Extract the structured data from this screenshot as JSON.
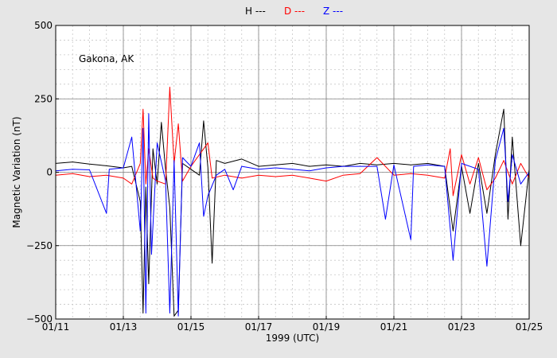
{
  "chart_data": {
    "type": "line",
    "title": "",
    "xlabel": "1999 (UTC)",
    "ylabel": "Magnetic Variation (nT)",
    "annotation": "Gakona, AK",
    "x_ticks": [
      "01/11",
      "01/13",
      "01/15",
      "01/17",
      "01/19",
      "01/21",
      "01/23",
      "01/25"
    ],
    "y_ticks": [
      "−500",
      "−250",
      "0",
      "250",
      "500"
    ],
    "xlim": [
      "1999-01-11",
      "1999-01-25"
    ],
    "ylim": [
      -500,
      500
    ],
    "grid": "major solid, minor dotted",
    "legend_placement": "top-center",
    "series": [
      {
        "name": "H ---",
        "color": "#000000",
        "points": [
          [
            "1999-01-11T00:00",
            30
          ],
          [
            "1999-01-11T12:00",
            35
          ],
          [
            "1999-01-12T00:00",
            28
          ],
          [
            "1999-01-12T12:00",
            22
          ],
          [
            "1999-01-13T00:00",
            15
          ],
          [
            "1999-01-13T06:00",
            20
          ],
          [
            "1999-01-13T12:00",
            -100
          ],
          [
            "1999-01-13T14:00",
            -480
          ],
          [
            "1999-01-13T16:00",
            -50
          ],
          [
            "1999-01-13T18:00",
            -380
          ],
          [
            "1999-01-13T21:00",
            80
          ],
          [
            "1999-01-14T00:00",
            -40
          ],
          [
            "1999-01-14T03:00",
            170
          ],
          [
            "1999-01-14T06:00",
            10
          ],
          [
            "1999-01-14T09:00",
            -120
          ],
          [
            "1999-01-14T12:00",
            -490
          ],
          [
            "1999-01-14T15:00",
            -470
          ],
          [
            "1999-01-14T18:00",
            30
          ],
          [
            "1999-01-15T00:00",
            10
          ],
          [
            "1999-01-15T06:00",
            -10
          ],
          [
            "1999-01-15T09:00",
            175
          ],
          [
            "1999-01-15T12:00",
            15
          ],
          [
            "1999-01-15T15:00",
            -310
          ],
          [
            "1999-01-15T18:00",
            40
          ],
          [
            "1999-01-16T00:00",
            30
          ],
          [
            "1999-01-16T12:00",
            45
          ],
          [
            "1999-01-17T00:00",
            20
          ],
          [
            "1999-01-17T12:00",
            25
          ],
          [
            "1999-01-18T00:00",
            30
          ],
          [
            "1999-01-18T12:00",
            20
          ],
          [
            "1999-01-19T00:00",
            25
          ],
          [
            "1999-01-19T12:00",
            20
          ],
          [
            "1999-01-20T00:00",
            30
          ],
          [
            "1999-01-20T12:00",
            25
          ],
          [
            "1999-01-21T00:00",
            30
          ],
          [
            "1999-01-21T12:00",
            25
          ],
          [
            "1999-01-22T00:00",
            30
          ],
          [
            "1999-01-22T12:00",
            20
          ],
          [
            "1999-01-22T18:00",
            -200
          ],
          [
            "1999-01-23T00:00",
            20
          ],
          [
            "1999-01-23T06:00",
            -140
          ],
          [
            "1999-01-23T12:00",
            30
          ],
          [
            "1999-01-23T18:00",
            -140
          ],
          [
            "1999-01-24T00:00",
            60
          ],
          [
            "1999-01-24T06:00",
            215
          ],
          [
            "1999-01-24T09:00",
            -160
          ],
          [
            "1999-01-24T12:00",
            120
          ],
          [
            "1999-01-24T18:00",
            -250
          ],
          [
            "1999-01-25T00:00",
            10
          ]
        ]
      },
      {
        "name": "D ---",
        "color": "#ff0000",
        "points": [
          [
            "1999-01-11T00:00",
            -10
          ],
          [
            "1999-01-11T12:00",
            -5
          ],
          [
            "1999-01-12T00:00",
            -15
          ],
          [
            "1999-01-12T12:00",
            -10
          ],
          [
            "1999-01-13T00:00",
            -20
          ],
          [
            "1999-01-13T06:00",
            -40
          ],
          [
            "1999-01-13T12:00",
            30
          ],
          [
            "1999-01-13T14:00",
            215
          ],
          [
            "1999-01-13T16:00",
            -40
          ],
          [
            "1999-01-13T18:00",
            80
          ],
          [
            "1999-01-13T21:00",
            -20
          ],
          [
            "1999-01-14T00:00",
            -30
          ],
          [
            "1999-01-14T06:00",
            -40
          ],
          [
            "1999-01-14T09:00",
            290
          ],
          [
            "1999-01-14T12:00",
            30
          ],
          [
            "1999-01-14T15:00",
            165
          ],
          [
            "1999-01-14T18:00",
            -30
          ],
          [
            "1999-01-15T00:00",
            20
          ],
          [
            "1999-01-15T12:00",
            100
          ],
          [
            "1999-01-15T15:00",
            -20
          ],
          [
            "1999-01-16T00:00",
            -10
          ],
          [
            "1999-01-16T12:00",
            -20
          ],
          [
            "1999-01-17T00:00",
            -10
          ],
          [
            "1999-01-17T12:00",
            -15
          ],
          [
            "1999-01-18T00:00",
            -10
          ],
          [
            "1999-01-18T12:00",
            -20
          ],
          [
            "1999-01-19T00:00",
            -30
          ],
          [
            "1999-01-19T12:00",
            -10
          ],
          [
            "1999-01-20T00:00",
            -5
          ],
          [
            "1999-01-20T12:00",
            50
          ],
          [
            "1999-01-21T00:00",
            -10
          ],
          [
            "1999-01-21T12:00",
            -5
          ],
          [
            "1999-01-22T00:00",
            -10
          ],
          [
            "1999-01-22T12:00",
            -20
          ],
          [
            "1999-01-22T16:00",
            80
          ],
          [
            "1999-01-22T18:00",
            -80
          ],
          [
            "1999-01-23T00:00",
            60
          ],
          [
            "1999-01-23T06:00",
            -40
          ],
          [
            "1999-01-23T12:00",
            50
          ],
          [
            "1999-01-23T18:00",
            -60
          ],
          [
            "1999-01-24T00:00",
            -20
          ],
          [
            "1999-01-24T06:00",
            40
          ],
          [
            "1999-01-24T12:00",
            -40
          ],
          [
            "1999-01-24T18:00",
            30
          ],
          [
            "1999-01-25T00:00",
            -20
          ]
        ]
      },
      {
        "name": "Z ---",
        "color": "#0000ff",
        "points": [
          [
            "1999-01-11T00:00",
            5
          ],
          [
            "1999-01-11T12:00",
            10
          ],
          [
            "1999-01-12T00:00",
            8
          ],
          [
            "1999-01-12T12:00",
            -140
          ],
          [
            "1999-01-12T14:00",
            10
          ],
          [
            "1999-01-13T00:00",
            15
          ],
          [
            "1999-01-13T06:00",
            120
          ],
          [
            "1999-01-13T12:00",
            -200
          ],
          [
            "1999-01-13T14:00",
            150
          ],
          [
            "1999-01-13T16:00",
            -480
          ],
          [
            "1999-01-13T18:00",
            200
          ],
          [
            "1999-01-13T20:00",
            -280
          ],
          [
            "1999-01-14T00:00",
            100
          ],
          [
            "1999-01-14T06:00",
            -30
          ],
          [
            "1999-01-14T09:00",
            -480
          ],
          [
            "1999-01-14T12:00",
            40
          ],
          [
            "1999-01-14T15:00",
            -490
          ],
          [
            "1999-01-14T18:00",
            50
          ],
          [
            "1999-01-15T00:00",
            20
          ],
          [
            "1999-01-15T06:00",
            100
          ],
          [
            "1999-01-15T09:00",
            -150
          ],
          [
            "1999-01-15T12:00",
            -80
          ],
          [
            "1999-01-15T18:00",
            -10
          ],
          [
            "1999-01-16T00:00",
            10
          ],
          [
            "1999-01-16T06:00",
            -60
          ],
          [
            "1999-01-16T12:00",
            20
          ],
          [
            "1999-01-17T00:00",
            10
          ],
          [
            "1999-01-17T12:00",
            15
          ],
          [
            "1999-01-18T00:00",
            10
          ],
          [
            "1999-01-18T12:00",
            5
          ],
          [
            "1999-01-19T00:00",
            15
          ],
          [
            "1999-01-19T12:00",
            20
          ],
          [
            "1999-01-20T00:00",
            20
          ],
          [
            "1999-01-20T12:00",
            20
          ],
          [
            "1999-01-20T18:00",
            -160
          ],
          [
            "1999-01-21T00:00",
            25
          ],
          [
            "1999-01-21T12:00",
            -230
          ],
          [
            "1999-01-21T14:00",
            20
          ],
          [
            "1999-01-22T00:00",
            25
          ],
          [
            "1999-01-22T12:00",
            20
          ],
          [
            "1999-01-22T18:00",
            -300
          ],
          [
            "1999-01-23T00:00",
            30
          ],
          [
            "1999-01-23T12:00",
            10
          ],
          [
            "1999-01-23T18:00",
            -320
          ],
          [
            "1999-01-24T00:00",
            40
          ],
          [
            "1999-01-24T06:00",
            150
          ],
          [
            "1999-01-24T09:00",
            -100
          ],
          [
            "1999-01-24T12:00",
            60
          ],
          [
            "1999-01-24T18:00",
            -40
          ],
          [
            "1999-01-25T00:00",
            0
          ]
        ]
      }
    ]
  }
}
